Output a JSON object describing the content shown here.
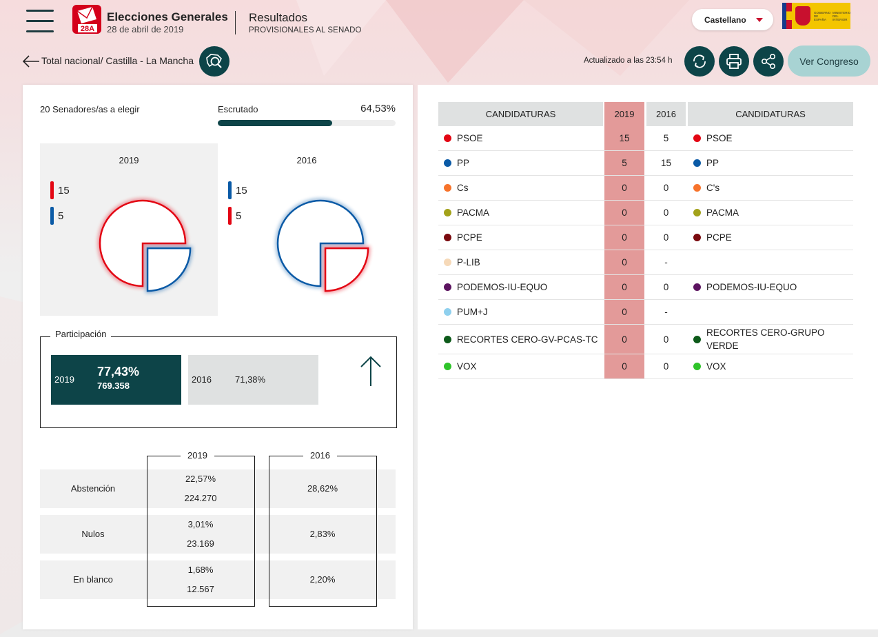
{
  "header": {
    "logo_label": "28A",
    "brand_title": "Elecciones Generales",
    "brand_date": "28 de abril de 2019",
    "results_title": "Resultados",
    "results_subtitle": "PROVISIONALES AL SENADO",
    "language": "Castellano",
    "gov_left": "GOBIERNO DE ESPAÑA",
    "gov_right": "MINISTERIO DEL INTERIOR"
  },
  "subheader": {
    "breadcrumb": "Total nacional/ Castilla - La Mancha",
    "updated": "Actualizado a las 23:54 h",
    "congreso_label": "Ver Congreso"
  },
  "summary": {
    "seats_label": "20 Senadores/as a elegir",
    "escrutado_label": "Escrutado",
    "escrutado_value": "64,53%",
    "escrutado_fraction": 0.6453
  },
  "charts": {
    "year_2019": "2019",
    "year_2016": "2016",
    "c2019": [
      {
        "value": "15",
        "color": "#e30613",
        "seats": 15
      },
      {
        "value": "5",
        "color": "#0a5aa6",
        "seats": 5
      }
    ],
    "c2016": [
      {
        "value": "15",
        "color": "#0a5aa6",
        "seats": 15
      },
      {
        "value": "5",
        "color": "#e30613",
        "seats": 5
      }
    ]
  },
  "participacion": {
    "legend": "Participación",
    "y2019": "2019",
    "p2019": "77,43%",
    "v2019": "769.358",
    "y2016": "2016",
    "p2016": "71,38%"
  },
  "stats": {
    "head_2019": "2019",
    "head_2016": "2016",
    "rows": [
      {
        "label": "Abstención",
        "p2019": "22,57%",
        "v2019": "224.270",
        "p2016": "28,62%"
      },
      {
        "label": "Nulos",
        "p2019": "3,01%",
        "v2019": "23.169",
        "p2016": "2,83%"
      },
      {
        "label": "En blanco",
        "p2019": "1,68%",
        "v2019": "12.567",
        "p2016": "2,20%"
      }
    ]
  },
  "table": {
    "h_cand_left": "CANDIDATURAS",
    "h_2019": "2019",
    "h_2016": "2016",
    "h_cand_right": "CANDIDATURAS",
    "rows": [
      {
        "name": "PSOE",
        "color": "#e30613",
        "v2019": "15",
        "v2016": "5",
        "name16": "PSOE",
        "color16": "#e30613"
      },
      {
        "name": "PP",
        "color": "#0a5aa6",
        "v2019": "5",
        "v2016": "15",
        "name16": "PP",
        "color16": "#0a5aa6"
      },
      {
        "name": "Cs",
        "color": "#f7732b",
        "v2019": "0",
        "v2016": "0",
        "name16": "C's",
        "color16": "#f7732b"
      },
      {
        "name": "PACMA",
        "color": "#a3a21a",
        "v2019": "0",
        "v2016": "0",
        "name16": "PACMA",
        "color16": "#a3a21a"
      },
      {
        "name": "PCPE",
        "color": "#7a0a0f",
        "v2019": "0",
        "v2016": "0",
        "name16": "PCPE",
        "color16": "#7a0a0f"
      },
      {
        "name": "P-LIB",
        "color": "#f6d9b8",
        "v2019": "0",
        "v2016": "-",
        "name16": "",
        "color16": ""
      },
      {
        "name": "PODEMOS-IU-EQUO",
        "color": "#5c1460",
        "v2019": "0",
        "v2016": "0",
        "name16": "PODEMOS-IU-EQUO",
        "color16": "#5c1460"
      },
      {
        "name": "PUM+J",
        "color": "#8fd0ee",
        "v2019": "0",
        "v2016": "-",
        "name16": "",
        "color16": ""
      },
      {
        "name": "RECORTES CERO-GV-PCAS-TC",
        "color": "#0d5a1a",
        "v2019": "0",
        "v2016": "0",
        "name16": "RECORTES CERO-GRUPO VERDE",
        "color16": "#0d5a1a"
      },
      {
        "name": "VOX",
        "color": "#2fc42a",
        "v2019": "0",
        "v2016": "0",
        "name16": "VOX",
        "color16": "#2fc42a"
      }
    ]
  }
}
